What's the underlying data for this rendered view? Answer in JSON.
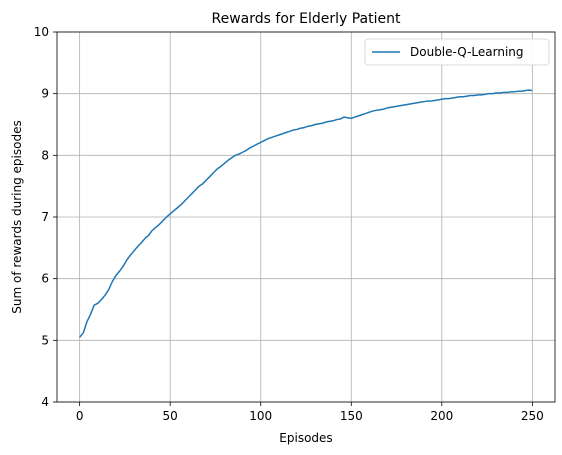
{
  "chart_data": {
    "type": "line",
    "title": "Rewards for Elderly Patient",
    "xlabel": "Episodes",
    "ylabel": "Sum of rewards during episodes",
    "xlim": [
      -12.5,
      262.5
    ],
    "ylim": [
      4,
      10
    ],
    "xticks": [
      0,
      50,
      100,
      150,
      200,
      250
    ],
    "yticks": [
      4,
      5,
      6,
      7,
      8,
      9,
      10
    ],
    "grid": true,
    "legend_position": "top-right",
    "series": [
      {
        "name": "Double-Q-Learning",
        "color": "#1f77b4",
        "points": [
          [
            0,
            5.05
          ],
          [
            2,
            5.12
          ],
          [
            4,
            5.3
          ],
          [
            6,
            5.42
          ],
          [
            8,
            5.57
          ],
          [
            10,
            5.6
          ],
          [
            12,
            5.66
          ],
          [
            14,
            5.73
          ],
          [
            16,
            5.82
          ],
          [
            18,
            5.95
          ],
          [
            20,
            6.05
          ],
          [
            22,
            6.12
          ],
          [
            24,
            6.2
          ],
          [
            26,
            6.3
          ],
          [
            28,
            6.38
          ],
          [
            30,
            6.45
          ],
          [
            32,
            6.52
          ],
          [
            34,
            6.58
          ],
          [
            36,
            6.65
          ],
          [
            38,
            6.7
          ],
          [
            40,
            6.78
          ],
          [
            42,
            6.83
          ],
          [
            44,
            6.88
          ],
          [
            46,
            6.94
          ],
          [
            48,
            7.0
          ],
          [
            50,
            7.05
          ],
          [
            52,
            7.1
          ],
          [
            54,
            7.15
          ],
          [
            56,
            7.2
          ],
          [
            58,
            7.26
          ],
          [
            60,
            7.32
          ],
          [
            62,
            7.38
          ],
          [
            64,
            7.44
          ],
          [
            66,
            7.5
          ],
          [
            68,
            7.54
          ],
          [
            70,
            7.6
          ],
          [
            72,
            7.66
          ],
          [
            74,
            7.72
          ],
          [
            76,
            7.78
          ],
          [
            78,
            7.82
          ],
          [
            80,
            7.87
          ],
          [
            82,
            7.92
          ],
          [
            84,
            7.96
          ],
          [
            86,
            8.0
          ],
          [
            88,
            8.02
          ],
          [
            90,
            8.05
          ],
          [
            92,
            8.08
          ],
          [
            94,
            8.12
          ],
          [
            96,
            8.15
          ],
          [
            98,
            8.18
          ],
          [
            100,
            8.21
          ],
          [
            102,
            8.24
          ],
          [
            104,
            8.27
          ],
          [
            106,
            8.29
          ],
          [
            108,
            8.31
          ],
          [
            110,
            8.33
          ],
          [
            112,
            8.35
          ],
          [
            114,
            8.37
          ],
          [
            116,
            8.39
          ],
          [
            118,
            8.41
          ],
          [
            120,
            8.42
          ],
          [
            122,
            8.44
          ],
          [
            124,
            8.45
          ],
          [
            126,
            8.47
          ],
          [
            128,
            8.48
          ],
          [
            130,
            8.5
          ],
          [
            132,
            8.51
          ],
          [
            134,
            8.52
          ],
          [
            136,
            8.54
          ],
          [
            138,
            8.55
          ],
          [
            140,
            8.56
          ],
          [
            142,
            8.58
          ],
          [
            144,
            8.59
          ],
          [
            146,
            8.62
          ],
          [
            148,
            8.61
          ],
          [
            150,
            8.6
          ],
          [
            152,
            8.62
          ],
          [
            154,
            8.64
          ],
          [
            156,
            8.66
          ],
          [
            158,
            8.68
          ],
          [
            160,
            8.7
          ],
          [
            162,
            8.72
          ],
          [
            164,
            8.73
          ],
          [
            166,
            8.74
          ],
          [
            168,
            8.75
          ],
          [
            170,
            8.77
          ],
          [
            172,
            8.78
          ],
          [
            174,
            8.79
          ],
          [
            176,
            8.8
          ],
          [
            178,
            8.81
          ],
          [
            180,
            8.82
          ],
          [
            182,
            8.83
          ],
          [
            184,
            8.84
          ],
          [
            186,
            8.85
          ],
          [
            188,
            8.86
          ],
          [
            190,
            8.87
          ],
          [
            192,
            8.88
          ],
          [
            194,
            8.88
          ],
          [
            196,
            8.89
          ],
          [
            198,
            8.9
          ],
          [
            200,
            8.91
          ],
          [
            202,
            8.92
          ],
          [
            204,
            8.92
          ],
          [
            206,
            8.93
          ],
          [
            208,
            8.94
          ],
          [
            210,
            8.95
          ],
          [
            212,
            8.95
          ],
          [
            214,
            8.96
          ],
          [
            216,
            8.97
          ],
          [
            218,
            8.97
          ],
          [
            220,
            8.98
          ],
          [
            222,
            8.98
          ],
          [
            224,
            8.99
          ],
          [
            226,
            9.0
          ],
          [
            228,
            9.0
          ],
          [
            230,
            9.01
          ],
          [
            232,
            9.01
          ],
          [
            234,
            9.02
          ],
          [
            236,
            9.02
          ],
          [
            238,
            9.03
          ],
          [
            240,
            9.03
          ],
          [
            242,
            9.04
          ],
          [
            244,
            9.04
          ],
          [
            246,
            9.05
          ],
          [
            248,
            9.06
          ],
          [
            250,
            9.05
          ]
        ]
      }
    ]
  }
}
